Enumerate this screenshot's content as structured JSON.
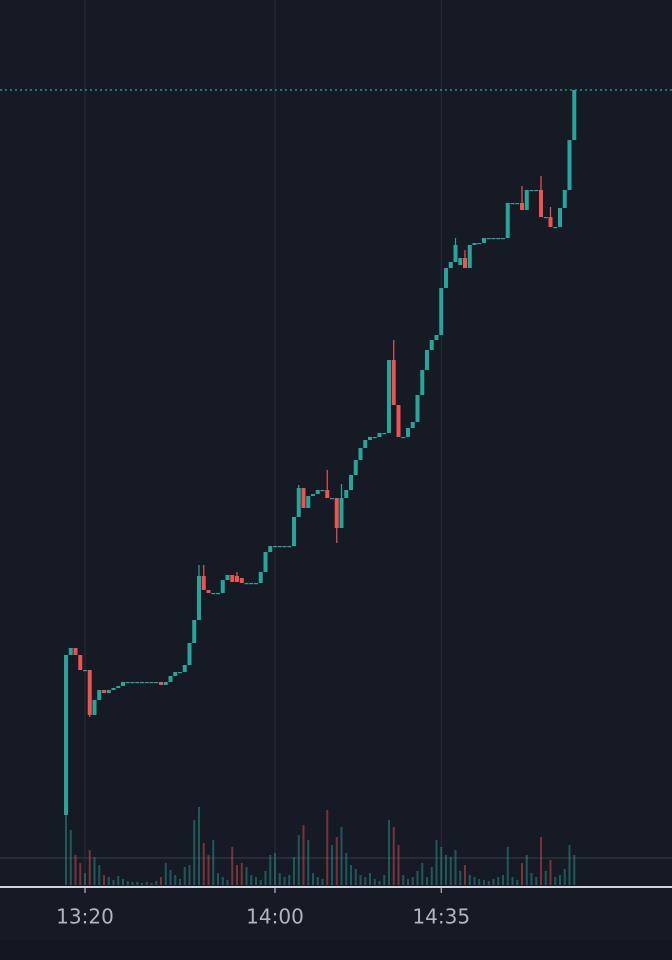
{
  "chart_data": {
    "type": "candlestick",
    "x": [
      "13:16",
      "13:17",
      "13:18",
      "13:19",
      "13:20",
      "13:21",
      "13:22",
      "13:23",
      "13:24",
      "13:25",
      "13:26",
      "13:27",
      "13:28",
      "13:29",
      "13:30",
      "13:31",
      "13:32",
      "13:33",
      "13:34",
      "13:35",
      "13:36",
      "13:37",
      "13:38",
      "13:39",
      "13:40",
      "13:41",
      "13:42",
      "13:43",
      "13:44",
      "13:45",
      "13:46",
      "13:47",
      "13:48",
      "13:49",
      "13:50",
      "13:51",
      "13:52",
      "13:53",
      "13:54",
      "13:55",
      "13:56",
      "13:57",
      "13:58",
      "13:59",
      "14:00",
      "14:01",
      "14:02",
      "14:03",
      "14:04",
      "14:05",
      "14:06",
      "14:07",
      "14:08",
      "14:09",
      "14:10",
      "14:11",
      "14:12",
      "14:13",
      "14:14",
      "14:15",
      "14:16",
      "14:17",
      "14:18",
      "14:19",
      "14:20",
      "14:21",
      "14:22",
      "14:23",
      "14:24",
      "14:25",
      "14:26",
      "14:27",
      "14:28",
      "14:29",
      "14:30",
      "14:31",
      "14:32",
      "14:33",
      "14:34",
      "14:35",
      "14:36",
      "14:37",
      "14:38",
      "14:39",
      "14:40",
      "14:41",
      "14:42",
      "14:43",
      "14:44",
      "14:45",
      "14:46",
      "14:47",
      "14:48",
      "14:49",
      "14:50",
      "14:51",
      "14:52",
      "14:53",
      "14:54",
      "14:55",
      "14:56",
      "14:57",
      "14:58",
      "14:59",
      "15:00",
      "15:01",
      "15:02",
      "15:03"
    ],
    "open": [
      145,
      305,
      312,
      305,
      290,
      290,
      245,
      260,
      270,
      267,
      270,
      272,
      274,
      278,
      278,
      278,
      278,
      278,
      278,
      278,
      278,
      275,
      278,
      284,
      288,
      288,
      295,
      317,
      340,
      384,
      370,
      367,
      367,
      367,
      380,
      385,
      384,
      382,
      377,
      377,
      377,
      377,
      388,
      408,
      414,
      414,
      414,
      414,
      414,
      443,
      472,
      452,
      464,
      466,
      470,
      470,
      462,
      462,
      432,
      462,
      470,
      485,
      500,
      512,
      520,
      523,
      523,
      527,
      527,
      600,
      555,
      523,
      523,
      532,
      538,
      565,
      590,
      610,
      620,
      625,
      672,
      692,
      698,
      695,
      702,
      692,
      715,
      717,
      717,
      722,
      722,
      722,
      722,
      722,
      757,
      757,
      757,
      750,
      770,
      770,
      770,
      743,
      743,
      733,
      733,
      752,
      770,
      820
    ],
    "high": [
      305,
      312,
      312,
      305,
      290,
      290,
      260,
      270,
      270,
      270,
      272,
      274,
      278,
      278,
      278,
      278,
      278,
      278,
      278,
      278,
      278,
      278,
      284,
      288,
      288,
      295,
      317,
      340,
      395,
      395,
      370,
      367,
      367,
      380,
      385,
      385,
      388,
      382,
      377,
      377,
      377,
      388,
      408,
      414,
      414,
      414,
      414,
      414,
      443,
      475,
      472,
      464,
      466,
      470,
      470,
      490,
      462,
      462,
      476,
      470,
      485,
      500,
      512,
      520,
      523,
      523,
      527,
      527,
      600,
      620,
      555,
      523,
      532,
      538,
      565,
      590,
      610,
      620,
      625,
      672,
      692,
      698,
      722,
      702,
      710,
      715,
      717,
      717,
      722,
      722,
      722,
      722,
      722,
      757,
      757,
      757,
      774,
      770,
      770,
      770,
      784,
      743,
      753,
      733,
      752,
      770,
      820,
      870
    ],
    "low": [
      145,
      305,
      305,
      290,
      290,
      243,
      245,
      260,
      267,
      267,
      270,
      272,
      274,
      278,
      278,
      278,
      278,
      278,
      278,
      278,
      275,
      275,
      278,
      284,
      288,
      288,
      295,
      317,
      340,
      370,
      367,
      367,
      367,
      367,
      380,
      378,
      378,
      377,
      377,
      377,
      377,
      377,
      388,
      408,
      414,
      414,
      414,
      414,
      414,
      443,
      452,
      452,
      464,
      466,
      470,
      462,
      462,
      417,
      432,
      462,
      470,
      485,
      500,
      512,
      520,
      523,
      523,
      527,
      527,
      555,
      523,
      523,
      523,
      532,
      538,
      565,
      590,
      610,
      620,
      625,
      672,
      692,
      698,
      695,
      692,
      692,
      715,
      717,
      717,
      722,
      722,
      722,
      722,
      722,
      757,
      757,
      750,
      750,
      770,
      770,
      743,
      743,
      733,
      733,
      733,
      752,
      770,
      820
    ],
    "close": [
      305,
      312,
      305,
      290,
      290,
      245,
      260,
      270,
      267,
      270,
      272,
      274,
      278,
      278,
      278,
      278,
      278,
      278,
      278,
      278,
      275,
      278,
      284,
      288,
      288,
      295,
      317,
      340,
      384,
      370,
      367,
      367,
      367,
      380,
      385,
      378,
      378,
      377,
      377,
      377,
      377,
      388,
      408,
      414,
      414,
      414,
      414,
      414,
      443,
      472,
      452,
      464,
      466,
      470,
      470,
      462,
      462,
      432,
      462,
      470,
      485,
      500,
      512,
      520,
      523,
      523,
      527,
      527,
      600,
      555,
      523,
      523,
      532,
      538,
      565,
      590,
      610,
      620,
      625,
      672,
      692,
      698,
      715,
      702,
      692,
      715,
      717,
      717,
      722,
      722,
      722,
      722,
      722,
      757,
      757,
      757,
      750,
      770,
      770,
      770,
      743,
      743,
      733,
      733,
      752,
      770,
      820,
      870
    ],
    "volume": [
      72,
      55,
      30,
      22,
      12,
      35,
      28,
      20,
      10,
      8,
      5,
      9,
      6,
      4,
      3,
      3,
      2,
      3,
      2,
      4,
      8,
      22,
      15,
      10,
      6,
      18,
      20,
      65,
      78,
      42,
      30,
      45,
      12,
      8,
      5,
      38,
      20,
      22,
      18,
      10,
      8,
      5,
      14,
      30,
      32,
      12,
      8,
      10,
      28,
      50,
      60,
      45,
      12,
      8,
      6,
      75,
      40,
      48,
      58,
      32,
      20,
      16,
      10,
      8,
      12,
      6,
      4,
      10,
      65,
      58,
      40,
      10,
      6,
      8,
      14,
      22,
      8,
      18,
      45,
      38,
      30,
      28,
      35,
      14,
      20,
      10,
      8,
      6,
      5,
      4,
      6,
      8,
      10,
      38,
      8,
      5,
      22,
      30,
      12,
      8,
      48,
      14,
      25,
      8,
      10,
      16,
      40,
      30
    ],
    "ylim": [
      75,
      960
    ],
    "volume_lim": [
      0,
      100
    ],
    "xticks": [
      "13:20",
      "14:00",
      "14:35"
    ],
    "up_color": "#26a69a",
    "down_color": "#ef5350",
    "grid": true,
    "price_line": true
  }
}
